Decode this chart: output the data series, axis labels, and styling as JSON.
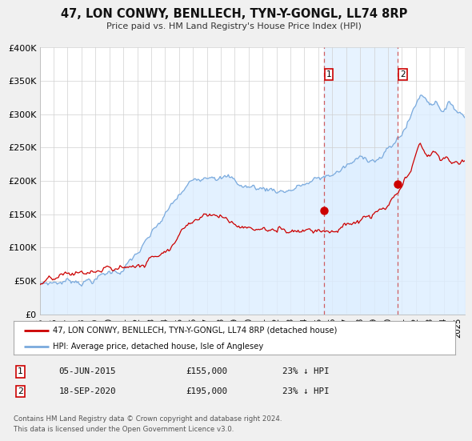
{
  "title": "47, LON CONWY, BENLLECH, TYN-Y-GONGL, LL74 8RP",
  "subtitle": "Price paid vs. HM Land Registry's House Price Index (HPI)",
  "ylim": [
    0,
    400000
  ],
  "yticks": [
    0,
    50000,
    100000,
    150000,
    200000,
    250000,
    300000,
    350000,
    400000
  ],
  "ytick_labels": [
    "£0",
    "£50K",
    "£100K",
    "£150K",
    "£200K",
    "£250K",
    "£300K",
    "£350K",
    "£400K"
  ],
  "xlim_start": 1995.0,
  "xlim_end": 2025.5,
  "xticks": [
    1995,
    1996,
    1997,
    1998,
    1999,
    2000,
    2001,
    2002,
    2003,
    2004,
    2005,
    2006,
    2007,
    2008,
    2009,
    2010,
    2011,
    2012,
    2013,
    2014,
    2015,
    2016,
    2017,
    2018,
    2019,
    2020,
    2021,
    2022,
    2023,
    2024,
    2025
  ],
  "property_color": "#cc0000",
  "hpi_color": "#7aaadd",
  "hpi_fill_color": "#ddeeff",
  "marker1_date": 2015.42,
  "marker1_price": 155000,
  "marker1_label": "05-JUN-2015",
  "marker1_amount": "£155,000",
  "marker1_pct": "23% ↓ HPI",
  "marker2_date": 2020.72,
  "marker2_price": 195000,
  "marker2_label": "18-SEP-2020",
  "marker2_amount": "£195,000",
  "marker2_pct": "23% ↓ HPI",
  "legend_line1": "47, LON CONWY, BENLLECH, TYN-Y-GONGL, LL74 8RP (detached house)",
  "legend_line2": "HPI: Average price, detached house, Isle of Anglesey",
  "footnote1": "Contains HM Land Registry data © Crown copyright and database right 2024.",
  "footnote2": "This data is licensed under the Open Government Licence v3.0.",
  "background_color": "#f0f0f0",
  "plot_bg_color": "#ffffff"
}
